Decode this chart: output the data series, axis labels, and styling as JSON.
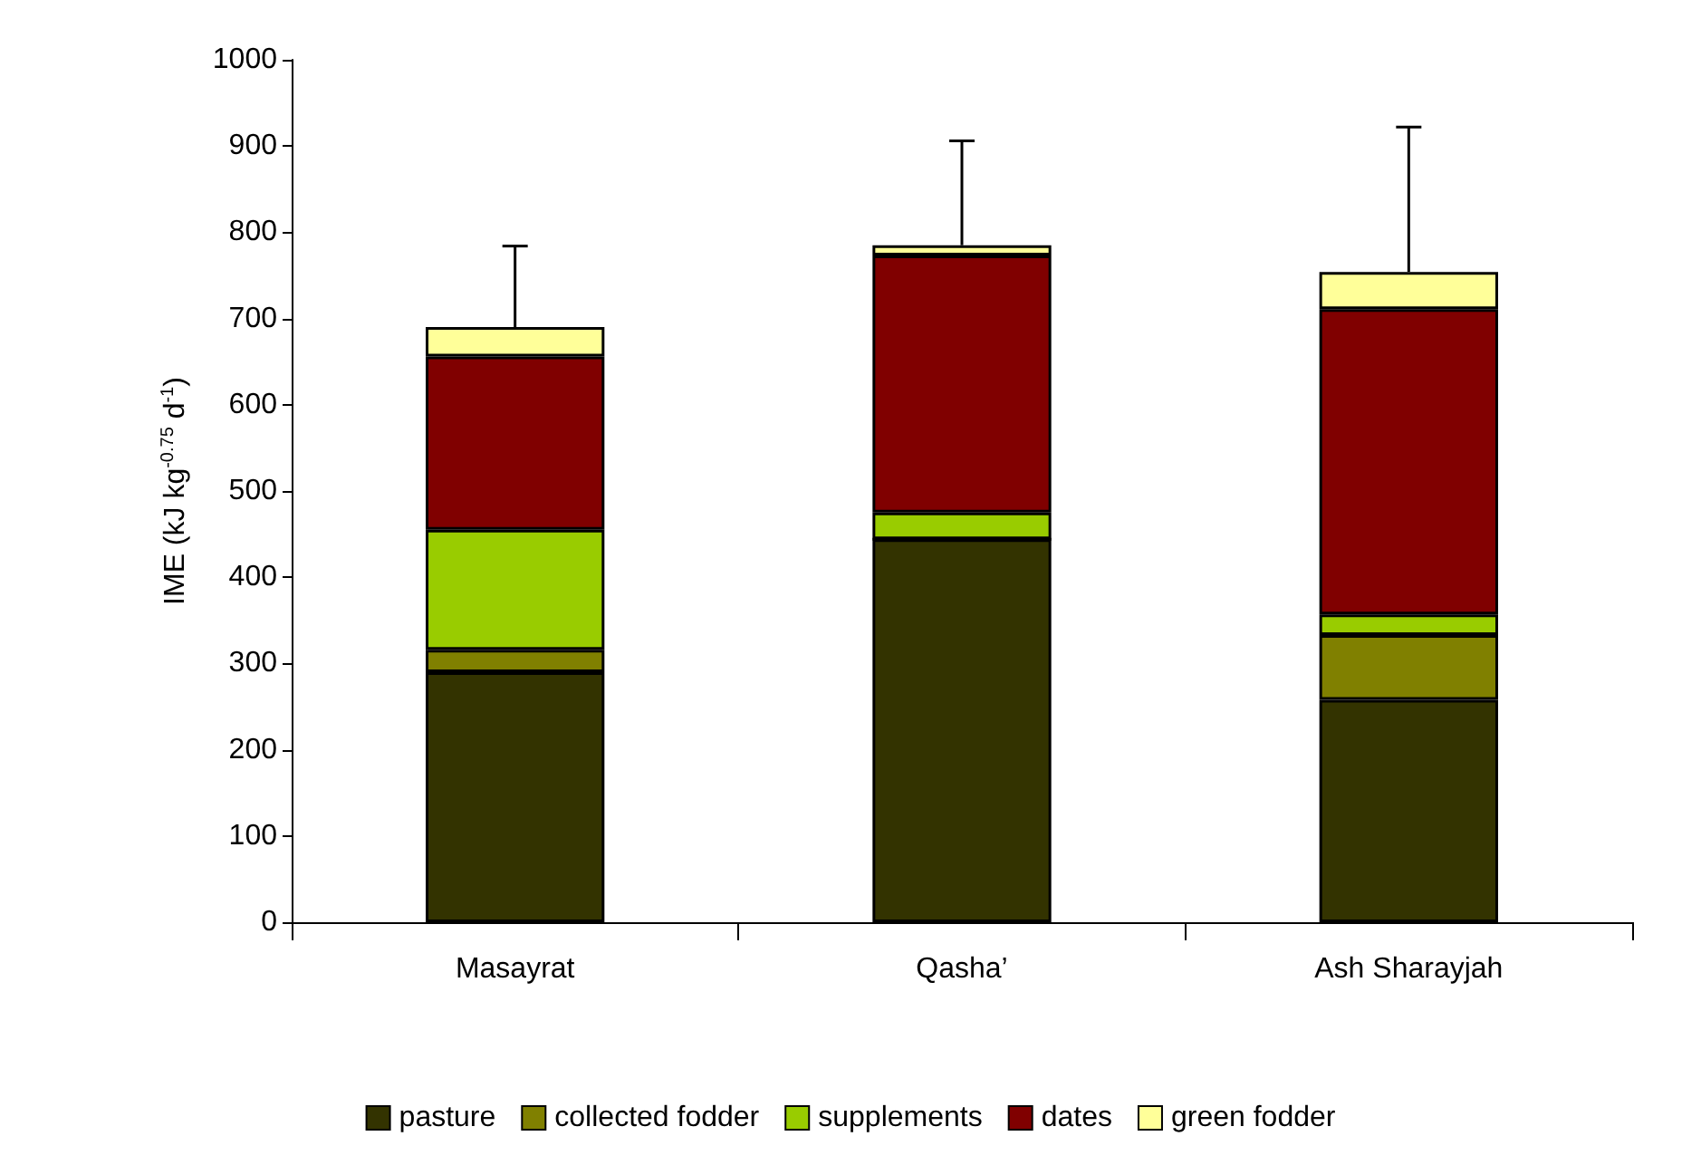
{
  "chart_data": {
    "type": "bar",
    "stacked": true,
    "ylabel": "IME (kJ kg$^{-0.75}$ d$^{-1}$)",
    "categories": [
      "Masayrat",
      "Qasha’",
      "Ash Sharayjah"
    ],
    "series": [
      {
        "name": "pasture",
        "color": "#333300",
        "values": [
          290,
          444,
          258
        ]
      },
      {
        "name": "collected fodder",
        "color": "#808000",
        "values": [
          26,
          0,
          75
        ]
      },
      {
        "name": "supplements",
        "color": "#99cc00",
        "values": [
          139,
          31,
          24
        ]
      },
      {
        "name": "dates",
        "color": "#800000",
        "values": [
          201,
          298,
          354
        ]
      },
      {
        "name": "green fodder",
        "color": "#ffff99",
        "values": [
          34,
          12,
          43
        ],
        "errors": [
          [
            690,
            784
          ],
          [
            785,
            906
          ],
          [
            754,
            922
          ]
        ]
      }
    ],
    "ylim": [
      0,
      1000
    ],
    "yticks": [
      0,
      100,
      200,
      300,
      400,
      500,
      600,
      700,
      800,
      900,
      1000
    ],
    "grid": false,
    "legend": "bottom"
  }
}
